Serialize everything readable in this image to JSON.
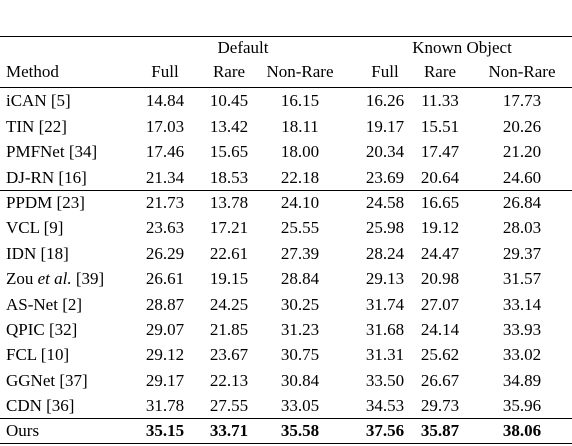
{
  "table": {
    "groups": [
      "Default",
      "Known Object"
    ],
    "columns": [
      "Method",
      "Full",
      "Rare",
      "Non-Rare",
      "Full",
      "Rare",
      "Non-Rare"
    ],
    "rows": [
      {
        "method": [
          "iCAN [5]"
        ],
        "values": [
          "14.84",
          "10.45",
          "16.15",
          "16.26",
          "11.33",
          "17.73"
        ]
      },
      {
        "method": [
          "TIN [22]"
        ],
        "values": [
          "17.03",
          "13.42",
          "18.11",
          "19.17",
          "15.51",
          "20.26"
        ]
      },
      {
        "method": [
          "PMFNet [34]"
        ],
        "values": [
          "17.46",
          "15.65",
          "18.00",
          "20.34",
          "17.47",
          "21.20"
        ]
      },
      {
        "method": [
          "DJ-RN [16]"
        ],
        "values": [
          "21.34",
          "18.53",
          "22.18",
          "23.69",
          "20.64",
          "24.60"
        ]
      },
      {
        "method": [
          "PPDM [23]"
        ],
        "values": [
          "21.73",
          "13.78",
          "24.10",
          "24.58",
          "16.65",
          "26.84"
        ]
      },
      {
        "method": [
          "VCL [9]"
        ],
        "values": [
          "23.63",
          "17.21",
          "25.55",
          "25.98",
          "19.12",
          "28.03"
        ]
      },
      {
        "method": [
          "IDN [18]"
        ],
        "values": [
          "26.29",
          "22.61",
          "27.39",
          "28.24",
          "24.47",
          "29.37"
        ]
      },
      {
        "method": [
          "Zou",
          "et al.",
          "[39]"
        ],
        "values": [
          "26.61",
          "19.15",
          "28.84",
          "29.13",
          "20.98",
          "31.57"
        ]
      },
      {
        "method": [
          "AS-Net [2]"
        ],
        "values": [
          "28.87",
          "24.25",
          "30.25",
          "31.74",
          "27.07",
          "33.14"
        ]
      },
      {
        "method": [
          "QPIC [32]"
        ],
        "values": [
          "29.07",
          "21.85",
          "31.23",
          "31.68",
          "24.14",
          "33.93"
        ]
      },
      {
        "method": [
          "FCL [10]"
        ],
        "values": [
          "29.12",
          "23.67",
          "30.75",
          "31.31",
          "25.62",
          "33.02"
        ]
      },
      {
        "method": [
          "GGNet [37]"
        ],
        "values": [
          "29.17",
          "22.13",
          "30.84",
          "33.50",
          "26.67",
          "34.89"
        ]
      },
      {
        "method": [
          "CDN [36]"
        ],
        "values": [
          "31.78",
          "27.55",
          "33.05",
          "34.53",
          "29.73",
          "35.96"
        ]
      },
      {
        "method": [
          "Ours"
        ],
        "values": [
          "35.15",
          "33.71",
          "35.58",
          "37.56",
          "35.87",
          "38.06"
        ],
        "bold": true
      }
    ]
  }
}
